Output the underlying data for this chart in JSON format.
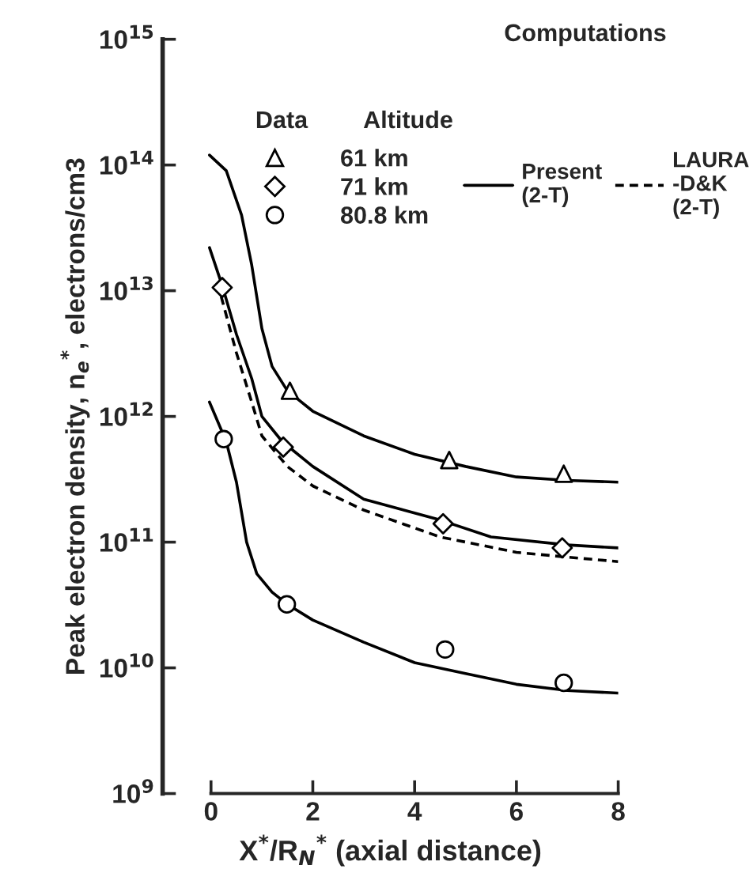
{
  "chart_data": {
    "type": "scatter",
    "xlabel": "X$^{*}$/R$_{N}$$^{*}$ (axial distance)",
    "ylabel": "Peak electron density, n$_{e}$$^{*}$, electrons/cm3",
    "legend_title": "Computations",
    "annotations": [
      "Data",
      "Altitude"
    ],
    "log": "y",
    "xlim": [
      -0.95,
      8
    ],
    "xticks": [
      0,
      2,
      4,
      6,
      8
    ],
    "ylim": [
      1000000000.0,
      1000000000000000.0
    ],
    "yticks": [
      {
        "value": 1000000000.0,
        "label": "10$^{9}$"
      },
      {
        "value": 10000000000.0,
        "label": "10$^{10}$"
      },
      {
        "value": 100000000000.0,
        "label": "10$^{11}$"
      },
      {
        "value": 1000000000000.0,
        "label": "10$^{12}$"
      },
      {
        "value": 10000000000000.0,
        "label": "10$^{13}$"
      },
      {
        "value": 100000000000000.0,
        "label": "10$^{14}$"
      },
      {
        "value": 1000000000000000.0,
        "label": "10$^{15}$"
      }
    ],
    "grid": false,
    "legend": "top right",
    "series": [
      {
        "name": "61 km",
        "marker": "triangle",
        "color": "#000000",
        "x": [
          1.55,
          4.68,
          6.93
        ],
        "values": [
          1600000000000.0,
          450000000000.0,
          350000000000.0
        ]
      },
      {
        "name": "71 km",
        "marker": "diamond",
        "color": "#000000",
        "x": [
          0.22,
          1.42,
          4.56,
          6.9
        ],
        "values": [
          10600000000000.0,
          570000000000.0,
          140000000000.0,
          90000000000.0
        ]
      },
      {
        "name": "80.8 km",
        "marker": "circle",
        "color": "#000000",
        "x": [
          0.25,
          1.49,
          4.6,
          6.93
        ],
        "values": [
          660000000000.0,
          32000000000.0,
          14000000000.0,
          7600000000.0
        ]
      },
      {
        "type": "line",
        "name": "Present\n(2-T)",
        "line_style": "solid",
        "color": "#000000",
        "x": [
          -0.03,
          0.3,
          0.6,
          0.8,
          1.0,
          1.2,
          1.5,
          2,
          3,
          4,
          5,
          6,
          7,
          8
        ],
        "values": [
          120000000000000.0,
          90000000000000.0,
          40000000000000.0,
          16000000000000.0,
          5000000000000.0,
          2500000000000.0,
          1600000000000.0,
          1100000000000.0,
          700000000000.0,
          500000000000.0,
          400000000000.0,
          330000000000.0,
          310000000000.0,
          300000000000.0
        ]
      },
      {
        "type": "line",
        "line_style": "solid",
        "color": "#000000",
        "x": [
          -0.03,
          0.22,
          0.5,
          0.8,
          1.0,
          1.4,
          2,
          3,
          4.5,
          5.5,
          7,
          8
        ],
        "values": [
          22000000000000.0,
          11000000000000.0,
          4500000000000.0,
          2000000000000.0,
          1000000000000.0,
          630000000000.0,
          400000000000.0,
          220000000000.0,
          150000000000.0,
          110000000000.0,
          95000000000.0,
          90000000000.0
        ]
      },
      {
        "type": "line",
        "line_style": "solid",
        "color": "#000000",
        "x": [
          -0.03,
          0.3,
          0.5,
          0.7,
          0.9,
          1.2,
          1.5,
          2,
          3,
          4,
          5,
          6,
          7,
          8
        ],
        "values": [
          1300000000000.0,
          630000000000.0,
          300000000000.0,
          100000000000.0,
          56000000000.0,
          40000000000.0,
          32000000000.0,
          24000000000.0,
          16000000000.0,
          11000000000.0,
          9000000000.0,
          7400000000.0,
          6600000000.0,
          6300000000.0
        ]
      },
      {
        "type": "line",
        "name": "LAURA\n-D&K\n(2-T)",
        "line_style": "dashed",
        "color": "#000000",
        "x": [
          0.2,
          0.5,
          0.8,
          1.0,
          1.5,
          2,
          3,
          4.5,
          6,
          7,
          8
        ],
        "values": [
          9000000000000.0,
          3200000000000.0,
          1300000000000.0,
          700000000000.0,
          400000000000.0,
          280000000000.0,
          180000000000.0,
          110000000000.0,
          83000000000.0,
          76000000000.0,
          70000000000.0
        ]
      }
    ]
  }
}
